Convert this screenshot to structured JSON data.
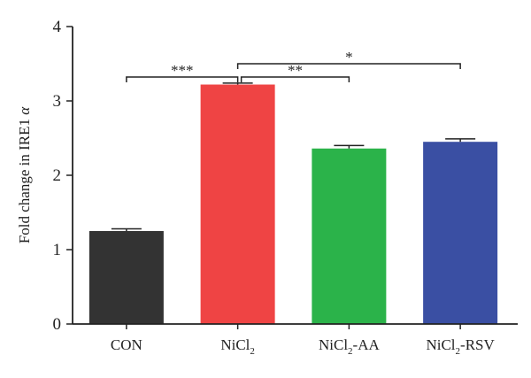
{
  "chart_data": {
    "type": "bar",
    "title": "",
    "xlabel": "",
    "ylabel": {
      "main": "Fold change in IRE1 ",
      "italic": "α"
    },
    "ylim": [
      0,
      4
    ],
    "yticks": [
      "0",
      "1",
      "2",
      "3",
      "4"
    ],
    "categories": [
      {
        "main": "CON",
        "sub": "",
        "suffix": ""
      },
      {
        "main": "NiCl",
        "sub": "2",
        "suffix": ""
      },
      {
        "main": "NiCl",
        "sub": "2",
        "suffix": "-AA"
      },
      {
        "main": "NiCl",
        "sub": "2",
        "suffix": "-RSV"
      }
    ],
    "values": [
      1.25,
      3.22,
      2.36,
      2.45
    ],
    "errors": [
      0.03,
      0.02,
      0.04,
      0.04
    ],
    "colors": [
      "#333333",
      "#ef4444",
      "#2bb34a",
      "#3a4fa3"
    ],
    "significance": [
      {
        "from": 0,
        "to": 1,
        "label": "***"
      },
      {
        "from": 1,
        "to": 2,
        "label": "**"
      },
      {
        "from": 1,
        "to": 3,
        "label": "*"
      }
    ],
    "grid": false,
    "legend": "none"
  }
}
